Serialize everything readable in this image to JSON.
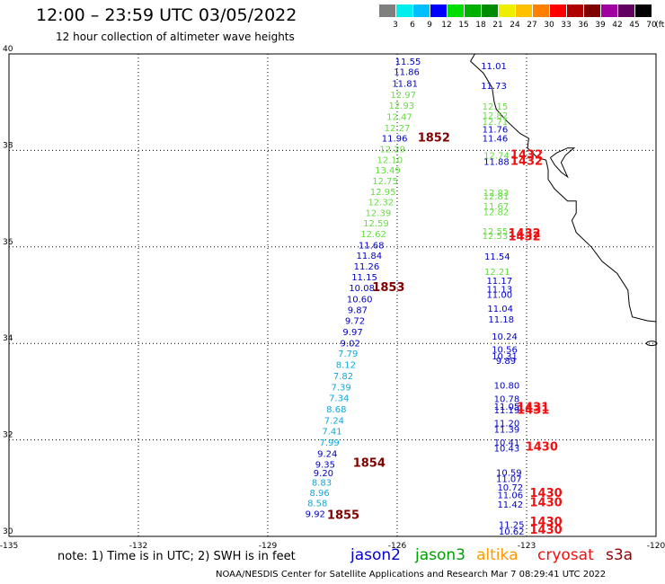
{
  "header": {
    "title": "12:00 – 23:59 UTC 03/05/2022",
    "subtitle": "12 hour collection of altimeter wave heights"
  },
  "colorbar": {
    "bins": [
      {
        "label": "3",
        "color": "#7f7f7f"
      },
      {
        "label": "6",
        "color": "#00eeee"
      },
      {
        "label": "9",
        "color": "#00bfff"
      },
      {
        "label": "12",
        "color": "#0000ff"
      },
      {
        "label": "15",
        "color": "#00dd00"
      },
      {
        "label": "18",
        "color": "#00b000"
      },
      {
        "label": "21",
        "color": "#008c00"
      },
      {
        "label": "24",
        "color": "#eeee00"
      },
      {
        "label": "27",
        "color": "#ffc000"
      },
      {
        "label": "30",
        "color": "#ff8000"
      },
      {
        "label": "33",
        "color": "#ff0000"
      },
      {
        "label": "36",
        "color": "#b00000"
      },
      {
        "label": "39",
        "color": "#800000"
      },
      {
        "label": "42",
        "color": "#a000a0"
      },
      {
        "label": "45",
        "color": "#600060"
      },
      {
        "label": "70",
        "color": "#000000"
      }
    ],
    "unit": "(ft)"
  },
  "axes": {
    "lon_ticks": [
      "-135",
      "-132",
      "-129",
      "-126",
      "-123",
      "-120"
    ],
    "lat_ticks": [
      "40",
      "38",
      "36",
      "34",
      "32",
      "30"
    ]
  },
  "colors": {
    "blue": "#0000c8",
    "green": "#66dd44",
    "cyan": "#10a8d8",
    "red": "#ee1111",
    "darkred": "#800000"
  },
  "tracks": [
    {
      "name": "west-track-a",
      "points": [
        {
          "lat": 39.78,
          "lon": -125.75,
          "v": "11.55",
          "c": "blue"
        },
        {
          "lat": 39.56,
          "lon": -125.78,
          "v": "11.86",
          "c": "blue"
        },
        {
          "lat": 39.32,
          "lon": -125.82,
          "v": "11.81",
          "c": "blue"
        },
        {
          "lat": 39.09,
          "lon": -125.86,
          "v": "12.97",
          "c": "green"
        },
        {
          "lat": 38.86,
          "lon": -125.9,
          "v": "12.93",
          "c": "green"
        },
        {
          "lat": 38.63,
          "lon": -125.95,
          "v": "12.47",
          "c": "green"
        },
        {
          "lat": 38.4,
          "lon": -126.0,
          "v": "12.27",
          "c": "green"
        },
        {
          "lat": 38.18,
          "lon": -126.06,
          "v": "11.96",
          "c": "blue"
        },
        {
          "lat": 37.96,
          "lon": -126.11,
          "v": "12.29",
          "c": "green"
        },
        {
          "lat": 37.74,
          "lon": -126.17,
          "v": "12.10",
          "c": "green"
        },
        {
          "lat": 37.52,
          "lon": -126.22,
          "v": "13.49",
          "c": "green"
        },
        {
          "lat": 37.3,
          "lon": -126.28,
          "v": "12.75",
          "c": "green"
        },
        {
          "lat": 37.08,
          "lon": -126.33,
          "v": "12.95",
          "c": "green"
        },
        {
          "lat": 36.86,
          "lon": -126.38,
          "v": "12.32",
          "c": "green"
        },
        {
          "lat": 36.64,
          "lon": -126.44,
          "v": "12.39",
          "c": "green"
        },
        {
          "lat": 36.42,
          "lon": -126.49,
          "v": "12.59",
          "c": "green"
        },
        {
          "lat": 36.2,
          "lon": -126.55,
          "v": "12.62",
          "c": "green"
        },
        {
          "lat": 35.97,
          "lon": -126.6,
          "v": "11.68",
          "c": "blue"
        },
        {
          "lat": 35.75,
          "lon": -126.65,
          "v": "11.84",
          "c": "blue"
        },
        {
          "lat": 35.53,
          "lon": -126.71,
          "v": "11.26",
          "c": "blue"
        },
        {
          "lat": 35.31,
          "lon": -126.76,
          "v": "11.15",
          "c": "blue"
        },
        {
          "lat": 35.08,
          "lon": -126.82,
          "v": "10.08",
          "c": "blue"
        },
        {
          "lat": 34.85,
          "lon": -126.87,
          "v": "10.60",
          "c": "blue"
        },
        {
          "lat": 34.63,
          "lon": -126.92,
          "v": "9.87",
          "c": "blue"
        },
        {
          "lat": 34.4,
          "lon": -126.98,
          "v": "9.72",
          "c": "blue"
        },
        {
          "lat": 34.17,
          "lon": -127.03,
          "v": "9.97",
          "c": "blue"
        },
        {
          "lat": 33.94,
          "lon": -127.09,
          "v": "9.02",
          "c": "blue"
        },
        {
          "lat": 33.72,
          "lon": -127.14,
          "v": "7.79",
          "c": "cyan"
        },
        {
          "lat": 33.49,
          "lon": -127.19,
          "v": "8.12",
          "c": "cyan"
        },
        {
          "lat": 33.26,
          "lon": -127.25,
          "v": "7.82",
          "c": "cyan"
        },
        {
          "lat": 33.03,
          "lon": -127.3,
          "v": "7.39",
          "c": "cyan"
        },
        {
          "lat": 32.8,
          "lon": -127.35,
          "v": "7.34",
          "c": "cyan"
        },
        {
          "lat": 32.57,
          "lon": -127.41,
          "v": "8.68",
          "c": "cyan"
        },
        {
          "lat": 32.34,
          "lon": -127.46,
          "v": "7.24",
          "c": "cyan"
        },
        {
          "lat": 32.11,
          "lon": -127.51,
          "v": "7.41",
          "c": "cyan"
        },
        {
          "lat": 31.88,
          "lon": -127.57,
          "v": "7.99",
          "c": "cyan"
        },
        {
          "lat": 31.65,
          "lon": -127.62,
          "v": "9.24",
          "c": "blue"
        },
        {
          "lat": 31.42,
          "lon": -127.67,
          "v": "9.35",
          "c": "blue"
        },
        {
          "lat": 31.25,
          "lon": -127.71,
          "v": "9.20",
          "c": "blue"
        },
        {
          "lat": 31.05,
          "lon": -127.75,
          "v": "8.83",
          "c": "cyan"
        },
        {
          "lat": 30.84,
          "lon": -127.8,
          "v": "8.96",
          "c": "cyan"
        },
        {
          "lat": 30.62,
          "lon": -127.85,
          "v": "8.58",
          "c": "cyan"
        },
        {
          "lat": 30.4,
          "lon": -127.9,
          "v": "9.92",
          "c": "blue"
        }
      ]
    },
    {
      "name": "east-track-b",
      "points": [
        {
          "lat": 39.68,
          "lon": -123.76,
          "v": "11.01",
          "c": "blue"
        },
        {
          "lat": 39.27,
          "lon": -123.76,
          "v": "11.73",
          "c": "blue"
        },
        {
          "lat": 38.85,
          "lon": -123.73,
          "v": "12.15",
          "c": "green"
        },
        {
          "lat": 38.66,
          "lon": -123.73,
          "v": "12.82",
          "c": "green"
        },
        {
          "lat": 38.53,
          "lon": -123.73,
          "v": "12.71",
          "c": "green"
        },
        {
          "lat": 38.37,
          "lon": -123.73,
          "v": "11.76",
          "c": "blue"
        },
        {
          "lat": 38.18,
          "lon": -123.73,
          "v": "11.46",
          "c": "blue"
        },
        {
          "lat": 37.83,
          "lon": -123.7,
          "v": "12.74",
          "c": "green"
        },
        {
          "lat": 37.7,
          "lon": -123.7,
          "v": "11.88",
          "c": "blue"
        },
        {
          "lat": 37.06,
          "lon": -123.71,
          "v": "12.83",
          "c": "green"
        },
        {
          "lat": 36.98,
          "lon": -123.71,
          "v": "12.81",
          "c": "green"
        },
        {
          "lat": 36.78,
          "lon": -123.71,
          "v": "11.67",
          "c": "green"
        },
        {
          "lat": 36.66,
          "lon": -123.71,
          "v": "12.82",
          "c": "green"
        },
        {
          "lat": 36.26,
          "lon": -123.73,
          "v": "12.55",
          "c": "green"
        },
        {
          "lat": 36.16,
          "lon": -123.73,
          "v": "12.53",
          "c": "green"
        },
        {
          "lat": 35.74,
          "lon": -123.68,
          "v": "11.54",
          "c": "blue"
        },
        {
          "lat": 35.42,
          "lon": -123.68,
          "v": "12.21",
          "c": "green"
        },
        {
          "lat": 35.23,
          "lon": -123.63,
          "v": "11.17",
          "c": "blue"
        },
        {
          "lat": 35.06,
          "lon": -123.63,
          "v": "11.13",
          "c": "blue"
        },
        {
          "lat": 34.94,
          "lon": -123.63,
          "v": "11.00",
          "c": "blue"
        },
        {
          "lat": 34.66,
          "lon": -123.61,
          "v": "11.04",
          "c": "blue"
        },
        {
          "lat": 34.43,
          "lon": -123.59,
          "v": "11.18",
          "c": "blue"
        },
        {
          "lat": 34.08,
          "lon": -123.51,
          "v": "10.24",
          "c": "blue"
        },
        {
          "lat": 33.81,
          "lon": -123.51,
          "v": "10.56",
          "c": "blue"
        },
        {
          "lat": 33.67,
          "lon": -123.51,
          "v": "10.31",
          "c": "blue"
        },
        {
          "lat": 33.58,
          "lon": -123.48,
          "v": "9.89",
          "c": "blue"
        },
        {
          "lat": 33.06,
          "lon": -123.46,
          "v": "10.80",
          "c": "blue"
        },
        {
          "lat": 32.78,
          "lon": -123.46,
          "v": "10.78",
          "c": "blue"
        },
        {
          "lat": 32.63,
          "lon": -123.46,
          "v": "11.05",
          "c": "blue"
        },
        {
          "lat": 32.55,
          "lon": -123.46,
          "v": "11.19",
          "c": "blue"
        },
        {
          "lat": 32.28,
          "lon": -123.46,
          "v": "11.20",
          "c": "blue"
        },
        {
          "lat": 32.15,
          "lon": -123.46,
          "v": "11.39",
          "c": "blue"
        },
        {
          "lat": 31.88,
          "lon": -123.46,
          "v": "10.41",
          "c": "blue"
        },
        {
          "lat": 31.76,
          "lon": -123.46,
          "v": "10.43",
          "c": "blue"
        },
        {
          "lat": 31.26,
          "lon": -123.41,
          "v": "10.59",
          "c": "blue"
        },
        {
          "lat": 31.13,
          "lon": -123.41,
          "v": "11.07",
          "c": "blue"
        },
        {
          "lat": 30.95,
          "lon": -123.38,
          "v": "10.72",
          "c": "blue"
        },
        {
          "lat": 30.79,
          "lon": -123.38,
          "v": "11.06",
          "c": "blue"
        },
        {
          "lat": 30.6,
          "lon": -123.38,
          "v": "11.42",
          "c": "blue"
        },
        {
          "lat": 30.18,
          "lon": -123.35,
          "v": "11.25",
          "c": "blue"
        },
        {
          "lat": 30.04,
          "lon": -123.35,
          "v": "10.62",
          "c": "blue"
        }
      ]
    }
  ],
  "pass_times": [
    {
      "lat": 38.18,
      "lon": -125.15,
      "v": "1852",
      "c": "darkred"
    },
    {
      "lat": 35.08,
      "lon": -126.2,
      "v": "1853",
      "c": "darkred"
    },
    {
      "lat": 31.44,
      "lon": -126.65,
      "v": "1854",
      "c": "darkred"
    },
    {
      "lat": 30.36,
      "lon": -127.25,
      "v": "1855",
      "c": "darkred"
    },
    {
      "lat": 37.83,
      "lon": -123.0,
      "v": "1432",
      "c": "red"
    },
    {
      "lat": 37.7,
      "lon": -123.0,
      "v": "1432",
      "c": "red"
    },
    {
      "lat": 36.2,
      "lon": -123.05,
      "v": "1432",
      "c": "red"
    },
    {
      "lat": 36.14,
      "lon": -123.05,
      "v": "1432",
      "c": "red"
    },
    {
      "lat": 32.6,
      "lon": -122.85,
      "v": "1431",
      "c": "red"
    },
    {
      "lat": 32.54,
      "lon": -122.85,
      "v": "1431",
      "c": "red"
    },
    {
      "lat": 31.78,
      "lon": -122.65,
      "v": "1430",
      "c": "red"
    },
    {
      "lat": 30.82,
      "lon": -122.55,
      "v": "1430",
      "c": "red"
    },
    {
      "lat": 30.62,
      "lon": -122.55,
      "v": "1430",
      "c": "red"
    },
    {
      "lat": 30.22,
      "lon": -122.55,
      "v": "1430",
      "c": "red"
    },
    {
      "lat": 30.06,
      "lon": -122.55,
      "v": "1430",
      "c": "red"
    }
  ],
  "legend": {
    "note": "note:  1) Time is in UTC;  2) SWH is in feet",
    "satellites": [
      {
        "name": "jason2",
        "color": "#0000c8"
      },
      {
        "name": "jason3",
        "color": "#00a000"
      },
      {
        "name": "altika",
        "color": "#ff9900"
      },
      {
        "name": "cryosat",
        "color": "#ee1111"
      },
      {
        "name": "s3a",
        "color": "#900000"
      }
    ]
  },
  "footer": "NOAA/NESDIS Center for Satellite Applications and Research    Mar  7 08:29:41 UTC 2022"
}
